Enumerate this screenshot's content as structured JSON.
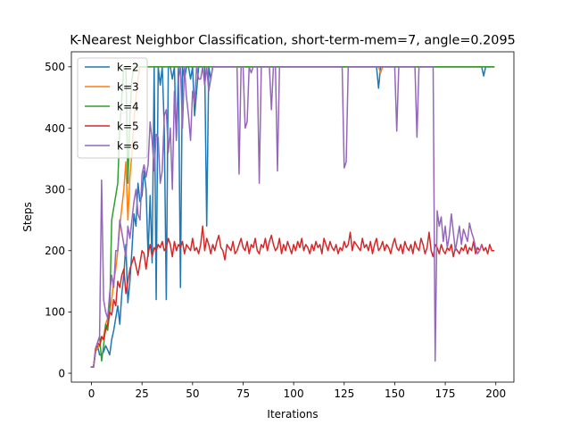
{
  "chart_data": {
    "type": "line",
    "title": "K-Nearest Neighbor Classification, short-term-mem=7, angle=0.2095",
    "xlabel": "Iterations",
    "ylabel": "Steps",
    "xlim": [
      -9.95,
      208.95
    ],
    "ylim": [
      -14.5,
      524.5
    ],
    "xticks": [
      0,
      25,
      50,
      75,
      100,
      125,
      150,
      175,
      200
    ],
    "yticks": [
      0,
      100,
      200,
      300,
      400,
      500
    ],
    "grid": false,
    "legend_position": "top-left",
    "x": {
      "start": 0,
      "end": 199,
      "step": 1
    },
    "series": [
      {
        "name": "k=2",
        "color": "#1f77b4",
        "values": [
          10,
          10,
          35,
          45,
          30,
          30,
          35,
          45,
          38,
          30,
          55,
          70,
          90,
          110,
          80,
          130,
          160,
          210,
          115,
          150,
          200,
          260,
          240,
          310,
          280,
          290,
          330,
          300,
          190,
          290,
          180,
          500,
          120,
          500,
          470,
          500,
          400,
          120,
          500,
          500,
          480,
          500,
          380,
          500,
          140,
          500,
          480,
          500,
          500,
          480,
          500,
          420,
          460,
          500,
          500,
          500,
          500,
          240,
          500,
          480,
          500,
          500,
          500,
          500,
          500,
          500,
          500,
          500,
          500,
          500,
          500,
          500,
          500,
          500,
          500,
          500,
          500,
          500,
          500,
          500,
          500,
          500,
          500,
          500,
          500,
          500,
          500,
          500,
          500,
          500,
          500,
          500,
          500,
          500,
          500,
          500,
          500,
          500,
          500,
          500,
          500,
          500,
          500,
          500,
          500,
          500,
          500,
          500,
          500,
          500,
          500,
          500,
          500,
          500,
          500,
          500,
          500,
          500,
          500,
          500,
          500,
          500,
          500,
          500,
          500,
          500,
          500,
          500,
          500,
          500,
          500,
          500,
          500,
          500,
          500,
          500,
          500,
          500,
          500,
          500,
          500,
          500,
          465,
          500,
          500,
          500,
          500,
          500,
          500,
          500,
          500,
          500,
          500,
          500,
          500,
          500,
          500,
          500,
          500,
          500,
          500,
          500,
          500,
          500,
          500,
          500,
          500,
          500,
          500,
          500,
          500,
          500,
          500,
          500,
          500,
          500,
          500,
          500,
          500,
          500,
          500,
          500,
          500,
          500,
          500,
          500,
          500,
          500,
          500,
          500,
          500,
          500,
          500,
          500,
          485,
          500,
          500,
          500,
          500,
          500
        ]
      },
      {
        "name": "k=3",
        "color": "#ff7f0e",
        "values": [
          10,
          10,
          35,
          40,
          45,
          55,
          60,
          80,
          90,
          100,
          120,
          150,
          170,
          200,
          240,
          270,
          300,
          345,
          250,
          320,
          360,
          410,
          450,
          480,
          500,
          500,
          500,
          500,
          500,
          500,
          500,
          500,
          500,
          500,
          500,
          500,
          500,
          500,
          500,
          500,
          500,
          500,
          500,
          500,
          500,
          500,
          500,
          500,
          500,
          500,
          500,
          500,
          500,
          500,
          500,
          500,
          500,
          500,
          500,
          500,
          500,
          500,
          500,
          500,
          500,
          500,
          500,
          500,
          500,
          500,
          500,
          500,
          500,
          500,
          500,
          500,
          500,
          500,
          500,
          500,
          500,
          500,
          500,
          500,
          500,
          500,
          500,
          500,
          500,
          500,
          500,
          500,
          500,
          500,
          500,
          500,
          500,
          500,
          500,
          500,
          500,
          500,
          500,
          500,
          500,
          500,
          500,
          500,
          500,
          500,
          500,
          500,
          500,
          500,
          500,
          500,
          500,
          500,
          500,
          500,
          500,
          500,
          500,
          500,
          500,
          500,
          500,
          500,
          500,
          500,
          500,
          500,
          500,
          500,
          500,
          500,
          500,
          500,
          500,
          500,
          500,
          500,
          500,
          490,
          500,
          500,
          500,
          500,
          500,
          500,
          500,
          500,
          500,
          500,
          500,
          500,
          500,
          500,
          500,
          500,
          500,
          500,
          500,
          500,
          500,
          500,
          500,
          500,
          500,
          500,
          500,
          500,
          500,
          500,
          500,
          500,
          500,
          500,
          500,
          500,
          500,
          500,
          500,
          500,
          500,
          500,
          500,
          500,
          500,
          500,
          500,
          500,
          500,
          500,
          500,
          500,
          500,
          500,
          500,
          500
        ]
      },
      {
        "name": "k=4",
        "color": "#2ca02c",
        "values": [
          10,
          10,
          35,
          50,
          60,
          20,
          45,
          80,
          70,
          100,
          250,
          270,
          290,
          310,
          400,
          450,
          500,
          500,
          310,
          420,
          480,
          500,
          500,
          500,
          500,
          500,
          500,
          500,
          500,
          500,
          500,
          500,
          500,
          500,
          500,
          500,
          500,
          500,
          500,
          500,
          500,
          500,
          500,
          500,
          500,
          500,
          500,
          500,
          500,
          500,
          500,
          500,
          500,
          500,
          500,
          500,
          500,
          500,
          500,
          500,
          500,
          500,
          500,
          500,
          500,
          500,
          500,
          500,
          500,
          500,
          500,
          500,
          500,
          500,
          500,
          500,
          500,
          500,
          500,
          500,
          500,
          500,
          500,
          500,
          500,
          500,
          500,
          500,
          500,
          500,
          500,
          500,
          500,
          500,
          500,
          500,
          500,
          500,
          500,
          500,
          500,
          500,
          500,
          500,
          500,
          500,
          500,
          500,
          500,
          500,
          500,
          500,
          500,
          500,
          500,
          500,
          500,
          500,
          500,
          500,
          500,
          500,
          500,
          500,
          500,
          500,
          500,
          500,
          500,
          500,
          500,
          500,
          500,
          500,
          500,
          500,
          500,
          500,
          500,
          500,
          500,
          500,
          500,
          500,
          500,
          500,
          500,
          500,
          500,
          500,
          500,
          500,
          500,
          500,
          500,
          500,
          500,
          500,
          500,
          500,
          500,
          500,
          500,
          500,
          500,
          500,
          500,
          500,
          500,
          500,
          500,
          500,
          500,
          500,
          500,
          500,
          500,
          500,
          500,
          500,
          500,
          500,
          500,
          500,
          500,
          500,
          500,
          500,
          500,
          500,
          500,
          500,
          500,
          500,
          500,
          500,
          500,
          500,
          500,
          500
        ]
      },
      {
        "name": "k=5",
        "color": "#d62728",
        "values": [
          10,
          10,
          40,
          50,
          45,
          60,
          55,
          70,
          80,
          100,
          95,
          120,
          110,
          150,
          140,
          160,
          170,
          130,
          150,
          170,
          180,
          190,
          175,
          160,
          180,
          200,
          195,
          170,
          195,
          210,
          190,
          205,
          200,
          210,
          205,
          215,
          200,
          205,
          220,
          210,
          190,
          215,
          200,
          210,
          205,
          215,
          195,
          210,
          205,
          200,
          220,
          200,
          205,
          195,
          210,
          240,
          200,
          220,
          210,
          195,
          210,
          200,
          215,
          225,
          205,
          200,
          185,
          210,
          205,
          200,
          215,
          195,
          200,
          210,
          220,
          205,
          200,
          215,
          195,
          210,
          205,
          220,
          200,
          195,
          210,
          205,
          220,
          200,
          215,
          225,
          210,
          200,
          205,
          220,
          195,
          210,
          200,
          215,
          205,
          195,
          210,
          200,
          215,
          205,
          220,
          200,
          210,
          205,
          195,
          210,
          200,
          215,
          205,
          210,
          195,
          220,
          210,
          200,
          215,
          205,
          200,
          210,
          195,
          205,
          200,
          215,
          205,
          210,
          230,
          200,
          215,
          210,
          205,
          200,
          220,
          205,
          210,
          200,
          215,
          195,
          210,
          220,
          200,
          205,
          215,
          200,
          210,
          205,
          195,
          210,
          220,
          205,
          200,
          210,
          195,
          215,
          205,
          200,
          210,
          195,
          215,
          205,
          200,
          220,
          210,
          195,
          205,
          230,
          200,
          190,
          210,
          205,
          195,
          210,
          200,
          195,
          205,
          200,
          210,
          190,
          205,
          200,
          195,
          205,
          200,
          210,
          195,
          205,
          200,
          215,
          195,
          205,
          200,
          210,
          200,
          205,
          195,
          210,
          200,
          200
        ]
      },
      {
        "name": "k=6",
        "color": "#9467bd",
        "values": [
          10,
          10,
          35,
          50,
          60,
          315,
          120,
          100,
          90,
          130,
          160,
          140,
          200,
          200,
          250,
          230,
          210,
          190,
          240,
          220,
          250,
          280,
          300,
          260,
          250,
          325,
          340,
          320,
          340,
          410,
          380,
          330,
          390,
          385,
          310,
          330,
          420,
          430,
          360,
          400,
          300,
          460,
          380,
          480,
          500,
          400,
          500,
          450,
          420,
          380,
          460,
          440,
          500,
          480,
          480,
          500,
          470,
          500,
          460,
          480,
          500,
          500,
          500,
          500,
          500,
          500,
          500,
          500,
          500,
          500,
          500,
          500,
          500,
          325,
          500,
          500,
          400,
          410,
          500,
          490,
          500,
          500,
          500,
          310,
          500,
          500,
          500,
          500,
          500,
          430,
          500,
          500,
          330,
          500,
          500,
          500,
          500,
          500,
          500,
          500,
          500,
          500,
          500,
          500,
          500,
          500,
          500,
          500,
          500,
          500,
          500,
          500,
          500,
          500,
          500,
          500,
          500,
          500,
          500,
          500,
          500,
          500,
          500,
          500,
          500,
          335,
          345,
          500,
          500,
          500,
          500,
          500,
          500,
          500,
          500,
          500,
          500,
          500,
          500,
          500,
          500,
          500,
          500,
          500,
          500,
          500,
          500,
          500,
          500,
          500,
          500,
          395,
          500,
          500,
          500,
          500,
          500,
          500,
          500,
          500,
          500,
          385,
          500,
          500,
          500,
          500,
          500,
          500,
          500,
          500,
          20,
          265,
          240,
          255,
          215,
          240,
          205,
          225,
          260,
          230,
          200,
          220,
          240,
          210,
          235,
          225,
          215,
          245,
          230,
          220,
          205,
          195,
          200,
          210
        ]
      }
    ]
  }
}
